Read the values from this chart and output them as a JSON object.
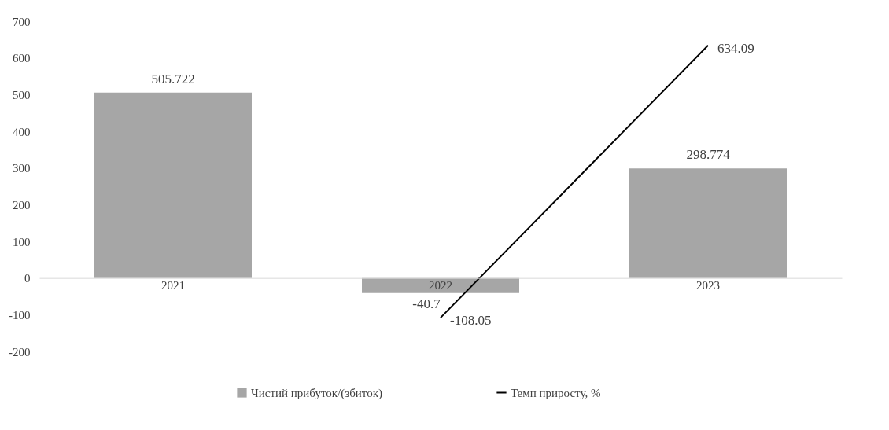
{
  "chart_data": {
    "type": "bar",
    "categories": [
      "2021",
      "2022",
      "2023"
    ],
    "series": [
      {
        "name": "Чистий прибуток/(збиток)",
        "color": "#a6a6a6",
        "values": [
          505.722,
          -40.7,
          298.774
        ]
      },
      {
        "name": "Темп приросту, %",
        "type": "line",
        "color": "#000000",
        "values": [
          null,
          -108.05,
          634.09
        ]
      }
    ],
    "ylim": [
      -200,
      700
    ],
    "yticks": [
      -200,
      -100,
      0,
      100,
      200,
      300,
      400,
      500,
      600,
      700
    ],
    "data_labels": true,
    "grid": false,
    "legend": "bottom",
    "marker": "none"
  }
}
